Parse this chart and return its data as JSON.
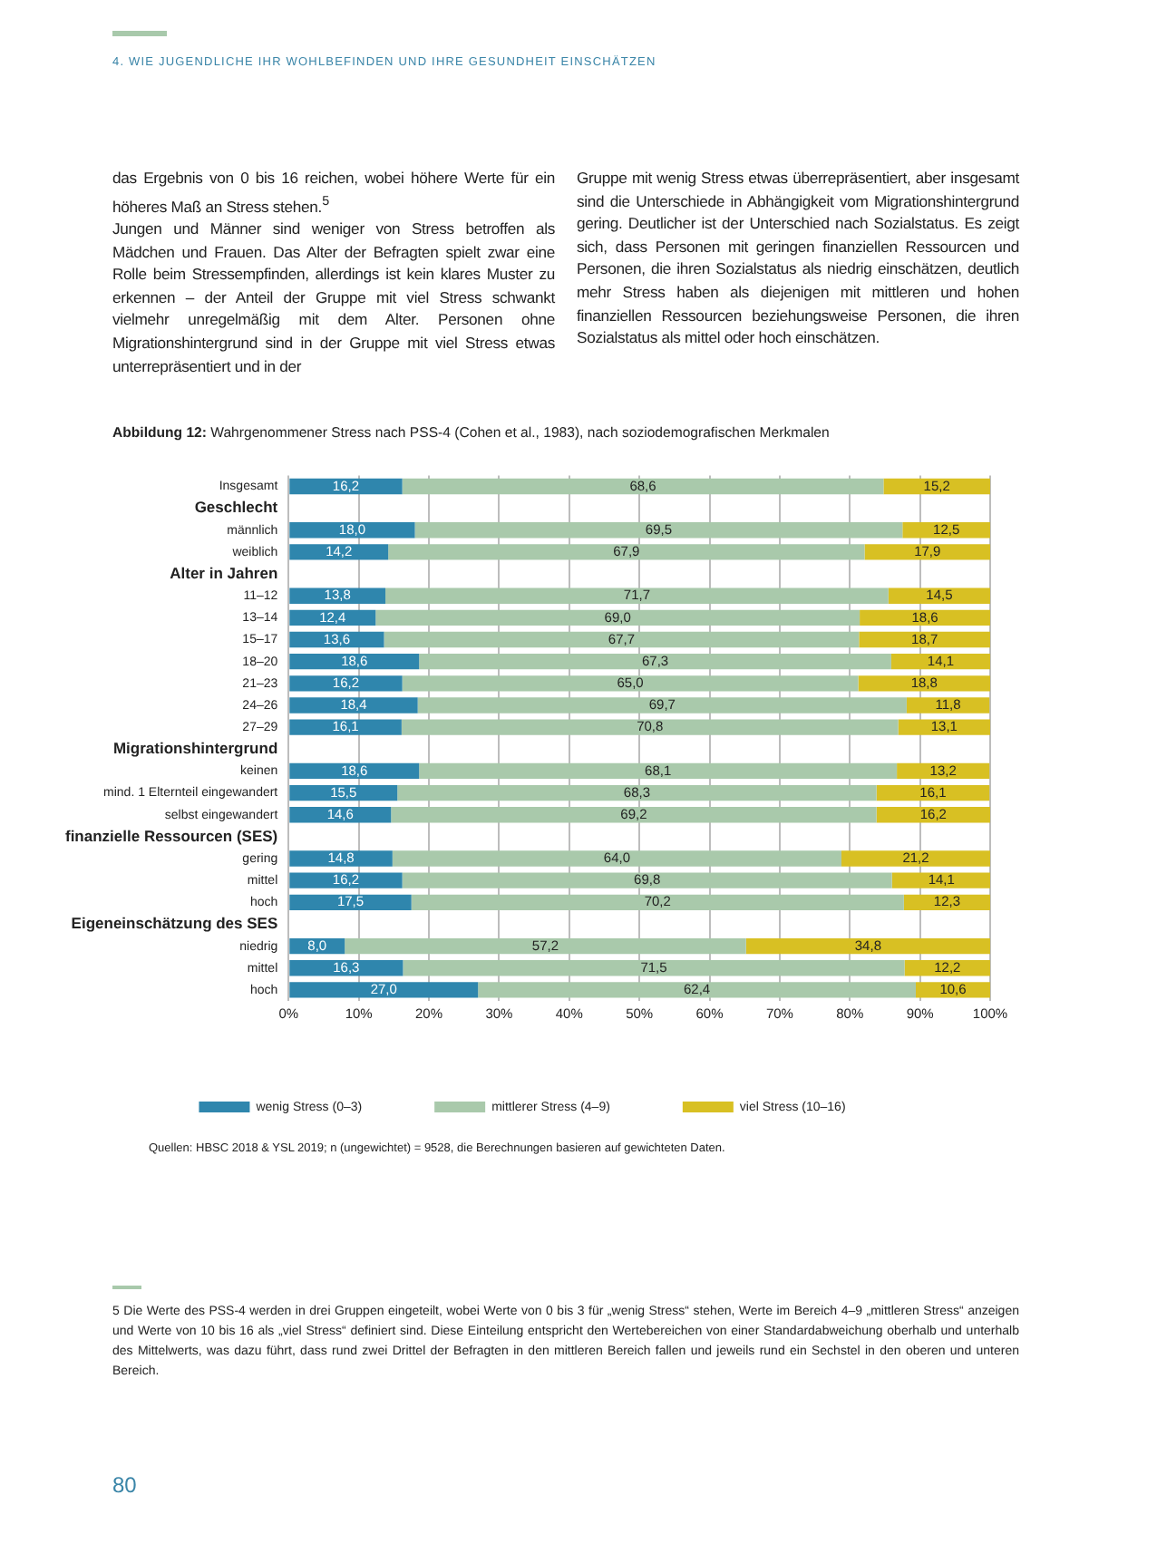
{
  "chart_data": {
    "type": "bar",
    "orientation": "horizontal",
    "stacked": true,
    "title": "Abbildung 12: Wahrgenommener Stress nach PSS-4 (Cohen et al., 1983), nach soziodemografischen Merkmalen",
    "categories": [
      "Insgesamt",
      "Geschlecht",
      "männlich",
      "weiblich",
      "Alter in Jahren",
      "11–12",
      "13–14",
      "15–17",
      "18–20",
      "21–23",
      "24–26",
      "27–29",
      "Migrationshintergrund",
      "keinen",
      "mind. 1 Elternteil eingewandert",
      "selbst eingewandert",
      "finanzielle Ressourcen (SES)",
      "gering",
      "mittel",
      "hoch",
      "Eigeneinschätzung des SES",
      "niedrig",
      "mittel",
      "hoch"
    ],
    "series": [
      {
        "name": "wenig Stress (0–3)",
        "color": "#2f86ad",
        "values": [
          16.2,
          null,
          18.0,
          14.2,
          null,
          13.8,
          12.4,
          13.6,
          18.6,
          16.2,
          18.4,
          16.1,
          null,
          18.6,
          15.5,
          14.6,
          null,
          14.8,
          16.2,
          17.5,
          null,
          8.0,
          16.3,
          27.0
        ],
        "value_labels": [
          "16,2",
          null,
          "18,0",
          "14,2",
          null,
          "13,8",
          "12,4",
          "13,6",
          "18,6",
          "16,2",
          "18,4",
          "16,1",
          null,
          "18,6",
          "15,5",
          "14,6",
          null,
          "14,8",
          "16,2",
          "17,5",
          null,
          "8,0",
          "16,3",
          "27,0"
        ]
      },
      {
        "name": "mittlerer Stress (4–9)",
        "color": "#a9c9ab",
        "values": [
          68.6,
          null,
          69.5,
          67.9,
          null,
          71.7,
          69.0,
          67.7,
          67.3,
          65.0,
          69.7,
          70.8,
          null,
          68.1,
          68.3,
          69.2,
          null,
          64.0,
          69.8,
          70.2,
          null,
          57.2,
          71.5,
          62.4
        ],
        "value_labels": [
          "68,6",
          null,
          "69,5",
          "67,9",
          null,
          "71,7",
          "69,0",
          "67,7",
          "67,3",
          "65,0",
          "69,7",
          "70,8",
          null,
          "68,1",
          "68,3",
          "69,2",
          null,
          "64,0",
          "69,8",
          "70,2",
          null,
          "57,2",
          "71,5",
          "62,4"
        ]
      },
      {
        "name": "viel Stress (10–16)",
        "color": "#d8c023",
        "values": [
          15.2,
          null,
          12.5,
          17.9,
          null,
          14.5,
          18.6,
          18.7,
          14.1,
          18.8,
          11.8,
          13.1,
          null,
          13.2,
          16.1,
          16.2,
          null,
          21.2,
          14.1,
          12.3,
          null,
          34.8,
          12.2,
          10.6
        ],
        "value_labels": [
          "15,2",
          null,
          "12,5",
          "17,9",
          null,
          "14,5",
          "18,6",
          "18,7",
          "14,1",
          "18,8",
          "11,8",
          "13,1",
          null,
          "13,2",
          "16,1",
          "16,2",
          null,
          "21,2",
          "14,1",
          "12,3",
          null,
          "34,8",
          "12,2",
          "10,6"
        ]
      }
    ],
    "xlim": [
      0,
      100
    ],
    "xticks": [
      {
        "value": 0,
        "label": "0%"
      },
      {
        "value": 10,
        "label": "10%"
      },
      {
        "value": 20,
        "label": "20%"
      },
      {
        "value": 30,
        "label": "30%"
      },
      {
        "value": 40,
        "label": "40%"
      },
      {
        "value": 50,
        "label": "50%"
      },
      {
        "value": 60,
        "label": "60%"
      },
      {
        "value": 70,
        "label": "70%"
      },
      {
        "value": 80,
        "label": "80%"
      },
      {
        "value": 90,
        "label": "90%"
      },
      {
        "value": 100,
        "label": "100%"
      }
    ],
    "grid": "x",
    "legend": "bottom",
    "annotations": [
      "4. WIE JUGENDLICHE IHR WOHLBEFINDEN UND IHRE GESUNDHEIT EINSCHÄTZEN",
      "das Ergebnis von 0 bis 16 reichen, wobei höhere Werte für ein höheres Maß an Stress stehen.$^{5}$\nJungen und Männer sind weniger von Stress betroffen als Mädchen und Frauen. Das Alter der Befragten spielt zwar eine Rolle beim Stressempfinden, allerdings ist kein klares Muster zu erkennen – der Anteil der Gruppe mit viel Stress schwankt vielmehr unregelmäßig mit dem Alter. Personen ohne Migrationshintergrund sind in der Gruppe mit viel Stress etwas unterrepräsentiert und in der",
      "Gruppe mit wenig Stress etwas überrepräsentiert, aber insgesamt sind die Unterschiede in Abhängigkeit vom Migrationshintergrund gering. Deutlicher ist der Unterschied nach Sozialstatus. Es zeigt sich, dass Personen mit geringen finanziellen Ressourcen und Personen, die ihren Sozialstatus als niedrig einschätzen, deutlich mehr Stress haben als diejenigen mit mittleren und hohen finanziellen Ressourcen beziehungsweise Personen, die ihren Sozialstatus als mittel oder hoch einschätzen.",
      "Quellen: HBSC 2018 & YSL 2019; n (ungewichtet) = 9528, die Berechnungen basieren auf gewichteten Daten.",
      "5 Die Werte des PSS-4 werden in drei Gruppen eingeteilt, wobei Werte von 0 bis 3 für „wenig Stress“ stehen, Werte im Bereich 4–9 „mittleren Stress“ anzeigen und Werte von 10 bis 16 als „viel Stress“ definiert sind. Diese Einteilung entspricht den Wertebereichen von einer Standardabweichung oberhalb und unterhalb des Mittelwerts, was dazu führt, dass rund zwei Drittel der Befragten in den mittleren Bereich fallen und jeweils rund ein Sechstel in den oberen und unteren Bereich.",
      "80"
    ]
  }
}
